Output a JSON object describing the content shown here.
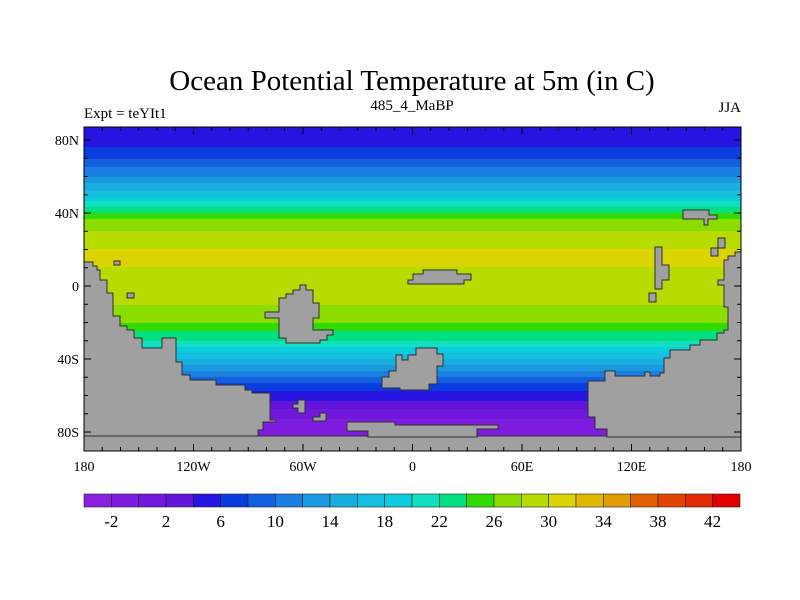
{
  "chart_data": {
    "type": "heatmap",
    "title": "Ocean Potential Temperature at 5m (in C)",
    "left_label": "Expt = teYIt1",
    "center_label": "485_4_MaBP",
    "right_label": "JJA",
    "y_ticks": [
      {
        "lat": 80,
        "label": "80N"
      },
      {
        "lat": 40,
        "label": "40N"
      },
      {
        "lat": 0,
        "label": "0"
      },
      {
        "lat": -40,
        "label": "40S"
      },
      {
        "lat": -80,
        "label": "80S"
      }
    ],
    "x_ticks": [
      {
        "lon": -180,
        "label": "180"
      },
      {
        "lon": -120,
        "label": "120W"
      },
      {
        "lon": -60,
        "label": "60W"
      },
      {
        "lon": 0,
        "label": "0"
      },
      {
        "lon": 60,
        "label": "60E"
      },
      {
        "lon": 120,
        "label": "120E"
      },
      {
        "lon": 180,
        "label": "180"
      }
    ],
    "xlim": [
      -180,
      180
    ],
    "ylim": [
      -90,
      87
    ],
    "zonal_mean_profile": {
      "lat": [
        87,
        80,
        70,
        60,
        50,
        45,
        40,
        35,
        30,
        20,
        10,
        0,
        -10,
        -20,
        -25,
        -30,
        -35,
        -40,
        -45,
        -50,
        -55,
        -60,
        -65,
        -70,
        -75,
        -80,
        -90
      ],
      "temperature": [
        4,
        5,
        8,
        12,
        17,
        21,
        24,
        27,
        28,
        30,
        30,
        29,
        28,
        26,
        24,
        22,
        19,
        16,
        13,
        10,
        7,
        5,
        3,
        1,
        -1,
        -2,
        -2
      ]
    },
    "land_color": "#a0a0a0",
    "colorbar": {
      "levels": [
        -2,
        0,
        2,
        4,
        6,
        8,
        10,
        12,
        14,
        16,
        18,
        20,
        22,
        24,
        26,
        28,
        30,
        32,
        34,
        36,
        38,
        40,
        42
      ],
      "labels": [
        "-2",
        "2",
        "6",
        "10",
        "14",
        "18",
        "22",
        "26",
        "30",
        "34",
        "38",
        "42"
      ],
      "label_levels": [
        -2,
        2,
        6,
        10,
        14,
        18,
        22,
        26,
        30,
        34,
        38,
        42
      ],
      "colors": [
        "#8a1fe0",
        "#7e1ce0",
        "#7019dc",
        "#6414d8",
        "#2814e0",
        "#0a3ce0",
        "#1260e0",
        "#1a80e0",
        "#1a98e0",
        "#18aee0",
        "#14c0e0",
        "#0ccce0",
        "#10e0c0",
        "#00e080",
        "#30dc00",
        "#8cdc00",
        "#b8dc00",
        "#dcd400",
        "#e0b800",
        "#e09c00",
        "#e06000",
        "#e04400",
        "#e02c00",
        "#e00000"
      ]
    }
  }
}
